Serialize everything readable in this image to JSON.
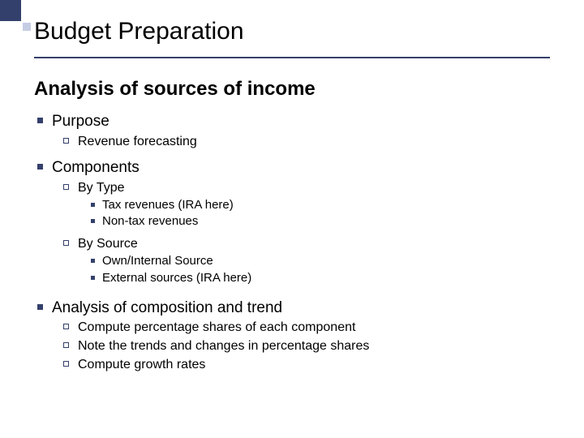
{
  "colors": {
    "accent": "#34406c",
    "accent_light": "#c5cde4",
    "bg": "#ffffff",
    "text": "#000000"
  },
  "typography": {
    "family": "Arial",
    "title_size_pt": 30,
    "subtitle_size_pt": 24,
    "lvl1_size_pt": 19,
    "lvl2_size_pt": 16,
    "lvl3_size_pt": 15
  },
  "title": "Budget Preparation",
  "subtitle": "Analysis of sources of income",
  "bullets": [
    {
      "label": "Purpose",
      "children": [
        {
          "label": "Revenue forecasting"
        }
      ]
    },
    {
      "label": "Components",
      "children": [
        {
          "label": "By Type",
          "children": [
            {
              "label": "Tax revenues (IRA here)"
            },
            {
              "label": "Non-tax revenues"
            }
          ]
        },
        {
          "label": "By Source",
          "children": [
            {
              "label": "Own/Internal Source"
            },
            {
              "label": "External sources (IRA here)"
            }
          ]
        }
      ]
    },
    {
      "label": "Analysis of composition and trend",
      "children": [
        {
          "label": "Compute percentage shares of each component"
        },
        {
          "label": "Note the trends and changes in percentage shares"
        },
        {
          "label": "Compute growth rates"
        }
      ]
    }
  ]
}
